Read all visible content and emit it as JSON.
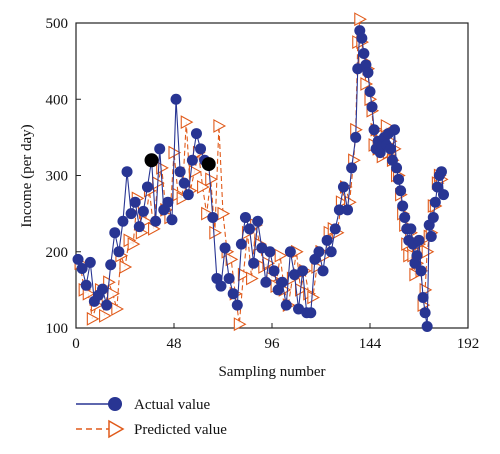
{
  "chart_data": {
    "type": "line",
    "xlabel": "Sampling number",
    "ylabel": "Income (per day)",
    "xlim": [
      0,
      192
    ],
    "ylim": [
      100,
      500
    ],
    "xticks": [
      0,
      48,
      96,
      144,
      192
    ],
    "yticks": [
      100,
      200,
      300,
      400,
      500
    ],
    "grid": false,
    "legend_position": "bottom-left",
    "series": [
      {
        "name": "Actual value",
        "color": "#283593",
        "marker": "filled-circle",
        "line": "solid",
        "points": [
          [
            1,
            190
          ],
          [
            3,
            178
          ],
          [
            5,
            156
          ],
          [
            7,
            186
          ],
          [
            9,
            135
          ],
          [
            11,
            143
          ],
          [
            13,
            151
          ],
          [
            15,
            130
          ],
          [
            17,
            183
          ],
          [
            19,
            225
          ],
          [
            21,
            200
          ],
          [
            23,
            240
          ],
          [
            25,
            305
          ],
          [
            27,
            250
          ],
          [
            29,
            265
          ],
          [
            31,
            233
          ],
          [
            33,
            253
          ],
          [
            35,
            285
          ],
          [
            37,
            320
          ],
          [
            39,
            240
          ],
          [
            41,
            335
          ],
          [
            43,
            255
          ],
          [
            45,
            265
          ],
          [
            47,
            242
          ],
          [
            49,
            400
          ],
          [
            51,
            305
          ],
          [
            53,
            290
          ],
          [
            55,
            275
          ],
          [
            57,
            320
          ],
          [
            59,
            355
          ],
          [
            61,
            335
          ],
          [
            63,
            320
          ],
          [
            65,
            315
          ],
          [
            67,
            245
          ],
          [
            69,
            165
          ],
          [
            71,
            155
          ],
          [
            73,
            205
          ],
          [
            75,
            165
          ],
          [
            77,
            145
          ],
          [
            79,
            130
          ],
          [
            81,
            210
          ],
          [
            83,
            245
          ],
          [
            85,
            230
          ],
          [
            87,
            185
          ],
          [
            89,
            240
          ],
          [
            91,
            205
          ],
          [
            93,
            160
          ],
          [
            95,
            200
          ],
          [
            97,
            175
          ],
          [
            99,
            150
          ],
          [
            101,
            160
          ],
          [
            103,
            130
          ],
          [
            105,
            200
          ],
          [
            107,
            170
          ],
          [
            109,
            125
          ],
          [
            111,
            175
          ],
          [
            113,
            120
          ],
          [
            115,
            120
          ],
          [
            117,
            190
          ],
          [
            119,
            200
          ],
          [
            121,
            175
          ],
          [
            123,
            215
          ],
          [
            125,
            200
          ],
          [
            127,
            230
          ],
          [
            129,
            255
          ],
          [
            131,
            285
          ],
          [
            133,
            255
          ],
          [
            135,
            310
          ],
          [
            137,
            350
          ],
          [
            138,
            440
          ],
          [
            139,
            490
          ],
          [
            140,
            480
          ],
          [
            141,
            460
          ],
          [
            142,
            445
          ],
          [
            143,
            435
          ],
          [
            144,
            410
          ],
          [
            145,
            390
          ],
          [
            146,
            360
          ],
          [
            147,
            335
          ],
          [
            148,
            345
          ],
          [
            149,
            330
          ],
          [
            150,
            340
          ],
          [
            151,
            350
          ],
          [
            152,
            340
          ],
          [
            153,
            355
          ],
          [
            154,
            335
          ],
          [
            155,
            320
          ],
          [
            156,
            360
          ],
          [
            157,
            310
          ],
          [
            158,
            295
          ],
          [
            159,
            280
          ],
          [
            160,
            260
          ],
          [
            161,
            245
          ],
          [
            162,
            230
          ],
          [
            163,
            215
          ],
          [
            164,
            230
          ],
          [
            165,
            210
          ],
          [
            166,
            185
          ],
          [
            167,
            195
          ],
          [
            168,
            215
          ],
          [
            169,
            175
          ],
          [
            170,
            140
          ],
          [
            171,
            120
          ],
          [
            172,
            102
          ],
          [
            173,
            235
          ],
          [
            174,
            220
          ],
          [
            175,
            245
          ],
          [
            176,
            265
          ],
          [
            177,
            285
          ],
          [
            178,
            300
          ],
          [
            179,
            305
          ],
          [
            180,
            275
          ]
        ]
      },
      {
        "name": "Predicted value",
        "color": "#e05a1a",
        "marker": "open-triangle-right",
        "line": "dashed",
        "points": [
          [
            2,
            185
          ],
          [
            4,
            150
          ],
          [
            6,
            145
          ],
          [
            8,
            112
          ],
          [
            10,
            130
          ],
          [
            12,
            150
          ],
          [
            14,
            116
          ],
          [
            16,
            160
          ],
          [
            18,
            145
          ],
          [
            20,
            125
          ],
          [
            22,
            195
          ],
          [
            24,
            180
          ],
          [
            26,
            215
          ],
          [
            28,
            210
          ],
          [
            30,
            270
          ],
          [
            32,
            225
          ],
          [
            34,
            240
          ],
          [
            36,
            280
          ],
          [
            38,
            230
          ],
          [
            40,
            290
          ],
          [
            42,
            310
          ],
          [
            44,
            255
          ],
          [
            46,
            245
          ],
          [
            48,
            330
          ],
          [
            50,
            275
          ],
          [
            52,
            270
          ],
          [
            54,
            370
          ],
          [
            56,
            280
          ],
          [
            58,
            305
          ],
          [
            60,
            330
          ],
          [
            62,
            285
          ],
          [
            64,
            250
          ],
          [
            66,
            295
          ],
          [
            68,
            225
          ],
          [
            70,
            365
          ],
          [
            72,
            250
          ],
          [
            74,
            200
          ],
          [
            76,
            190
          ],
          [
            78,
            145
          ],
          [
            80,
            105
          ],
          [
            82,
            170
          ],
          [
            84,
            225
          ],
          [
            86,
            165
          ],
          [
            88,
            235
          ],
          [
            90,
            210
          ],
          [
            92,
            180
          ],
          [
            94,
            185
          ],
          [
            96,
            165
          ],
          [
            98,
            155
          ],
          [
            100,
            195
          ],
          [
            102,
            150
          ],
          [
            104,
            130
          ],
          [
            106,
            165
          ],
          [
            108,
            200
          ],
          [
            110,
            150
          ],
          [
            112,
            175
          ],
          [
            114,
            145
          ],
          [
            116,
            140
          ],
          [
            118,
            180
          ],
          [
            120,
            200
          ],
          [
            122,
            195
          ],
          [
            124,
            225
          ],
          [
            126,
            230
          ],
          [
            128,
            225
          ],
          [
            130,
            265
          ],
          [
            132,
            285
          ],
          [
            134,
            265
          ],
          [
            136,
            320
          ],
          [
            137,
            360
          ],
          [
            138,
            475
          ],
          [
            139,
            505
          ],
          [
            140,
            475
          ],
          [
            141,
            450
          ],
          [
            142,
            420
          ],
          [
            143,
            440
          ],
          [
            144,
            400
          ],
          [
            145,
            385
          ],
          [
            146,
            340
          ],
          [
            147,
            360
          ],
          [
            148,
            335
          ],
          [
            149,
            345
          ],
          [
            150,
            325
          ],
          [
            151,
            335
          ],
          [
            152,
            365
          ],
          [
            153,
            330
          ],
          [
            154,
            345
          ],
          [
            155,
            320
          ],
          [
            156,
            335
          ],
          [
            157,
            300
          ],
          [
            158,
            300
          ],
          [
            159,
            275
          ],
          [
            160,
            250
          ],
          [
            161,
            235
          ],
          [
            162,
            210
          ],
          [
            163,
            195
          ],
          [
            164,
            225
          ],
          [
            165,
            195
          ],
          [
            166,
            170
          ],
          [
            167,
            185
          ],
          [
            168,
            210
          ],
          [
            169,
            175
          ],
          [
            170,
            130
          ],
          [
            171,
            150
          ],
          [
            172,
            200
          ],
          [
            173,
            220
          ],
          [
            174,
            225
          ],
          [
            175,
            260
          ],
          [
            176,
            260
          ],
          [
            177,
            290
          ],
          [
            178,
            300
          ],
          [
            179,
            295
          ]
        ]
      }
    ]
  },
  "legend": {
    "actual_label": "Actual value",
    "predicted_label": "Predicted value"
  }
}
